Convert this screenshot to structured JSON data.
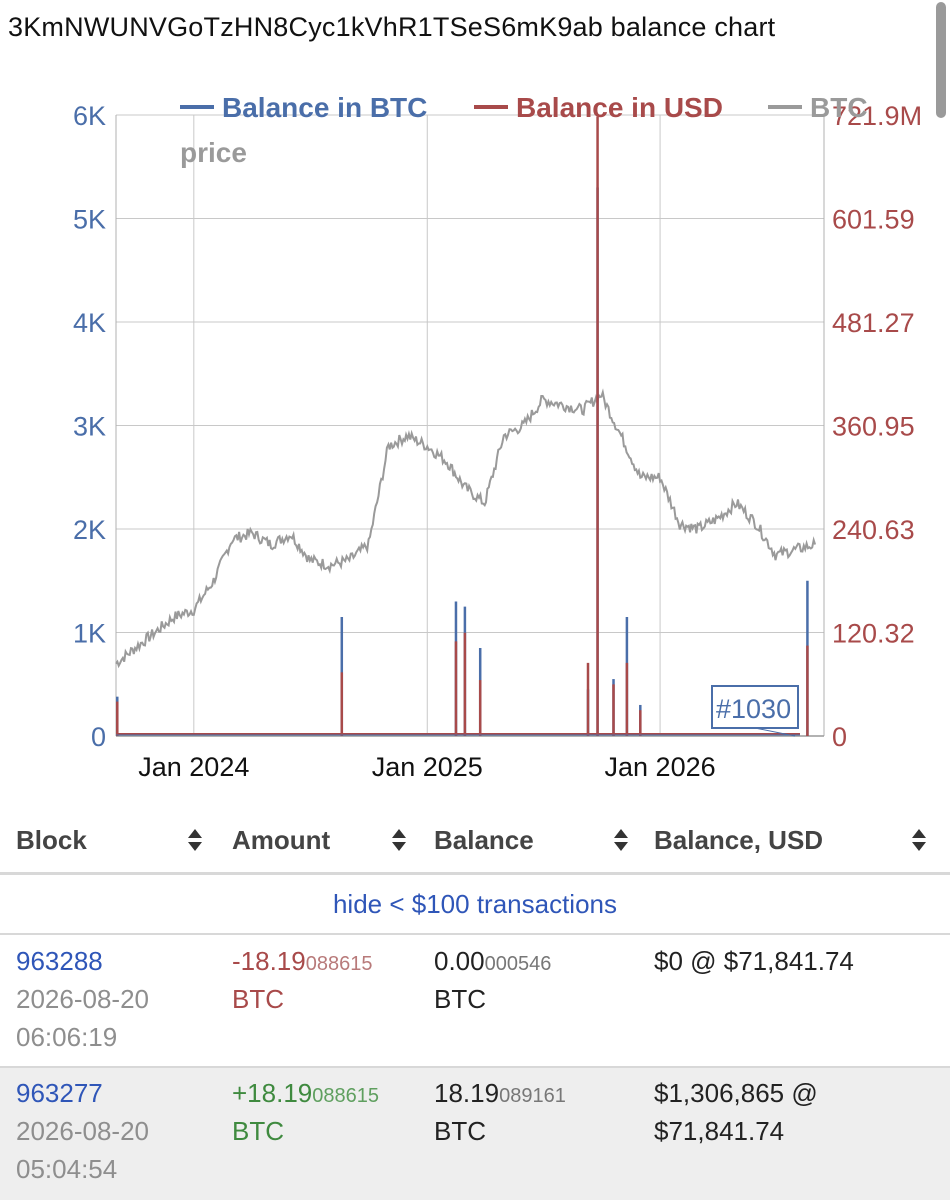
{
  "title": "3KmNWUNVGoTzHN8Cyc1kVhR1TSeS6mK9ab balance chart",
  "colors": {
    "btc": "#4a6ea9",
    "usd": "#a84a4a",
    "price": "#9a9a9a",
    "grid": "#c8c8c8"
  },
  "chart_data": {
    "type": "line",
    "title": "3KmNWUNVGoTzHN8Cyc1kVhR1TSeS6mK9ab balance chart",
    "legend": [
      "Balance in BTC",
      "Balance in USD",
      "BTC price"
    ],
    "legend_placement": "top",
    "grid": true,
    "x_range": [
      "2023-09-01",
      "2026-09-15"
    ],
    "x_ticks": [
      "Jan 2024",
      "Jan 2025",
      "Jan 2026"
    ],
    "y_left": {
      "ticks": [
        "0",
        "1K",
        "2K",
        "3K",
        "4K",
        "5K",
        "6K"
      ],
      "ylim": [
        0,
        6000
      ]
    },
    "y_right": {
      "ticks": [
        "0",
        "120.32",
        "240.63",
        "360.95",
        "481.27",
        "601.59",
        "721.9M"
      ],
      "ylim": [
        0,
        721.9
      ]
    },
    "series": [
      {
        "name": "BTC price",
        "axis": "left",
        "points": [
          [
            "2023-09-01",
            700
          ],
          [
            "2023-10-01",
            850
          ],
          [
            "2023-11-01",
            1000
          ],
          [
            "2023-12-01",
            1150
          ],
          [
            "2024-01-01",
            1220
          ],
          [
            "2024-02-01",
            1500
          ],
          [
            "2024-03-01",
            1900
          ],
          [
            "2024-04-01",
            1960
          ],
          [
            "2024-05-01",
            1850
          ],
          [
            "2024-06-01",
            1950
          ],
          [
            "2024-07-01",
            1700
          ],
          [
            "2024-08-01",
            1650
          ],
          [
            "2024-09-01",
            1700
          ],
          [
            "2024-10-01",
            1850
          ],
          [
            "2024-11-01",
            2800
          ],
          [
            "2024-12-01",
            2900
          ],
          [
            "2025-01-01",
            2800
          ],
          [
            "2025-02-01",
            2650
          ],
          [
            "2025-03-01",
            2400
          ],
          [
            "2025-04-01",
            2250
          ],
          [
            "2025-05-01",
            2900
          ],
          [
            "2025-06-01",
            3000
          ],
          [
            "2025-07-01",
            3250
          ],
          [
            "2025-08-01",
            3200
          ],
          [
            "2025-09-01",
            3150
          ],
          [
            "2025-10-01",
            3300
          ],
          [
            "2025-11-01",
            2900
          ],
          [
            "2025-12-01",
            2500
          ],
          [
            "2026-01-01",
            2500
          ],
          [
            "2026-02-01",
            2050
          ],
          [
            "2026-03-01",
            2000
          ],
          [
            "2026-04-01",
            2100
          ],
          [
            "2026-05-01",
            2250
          ],
          [
            "2026-06-01",
            2050
          ],
          [
            "2026-07-01",
            1750
          ],
          [
            "2026-08-01",
            1800
          ],
          [
            "2026-09-01",
            1850
          ]
        ]
      },
      {
        "name": "Balance in BTC",
        "axis": "left",
        "spikes": [
          [
            "2023-09-03",
            380
          ],
          [
            "2024-08-20",
            1150
          ],
          [
            "2025-02-15",
            1300
          ],
          [
            "2025-03-01",
            1250
          ],
          [
            "2025-03-25",
            850
          ],
          [
            "2025-09-10",
            450
          ],
          [
            "2025-09-25",
            5300
          ],
          [
            "2025-10-20",
            550
          ],
          [
            "2025-11-10",
            1150
          ],
          [
            "2025-12-01",
            300
          ],
          [
            "2026-08-20",
            1500
          ]
        ]
      },
      {
        "name": "Balance in USD",
        "axis": "right",
        "spikes": [
          [
            "2023-09-03",
            40
          ],
          [
            "2024-08-20",
            74
          ],
          [
            "2025-02-15",
            110
          ],
          [
            "2025-03-01",
            120
          ],
          [
            "2025-03-25",
            65
          ],
          [
            "2025-09-10",
            85
          ],
          [
            "2025-09-25",
            720
          ],
          [
            "2025-10-20",
            60
          ],
          [
            "2025-11-10",
            85
          ],
          [
            "2025-12-01",
            30
          ],
          [
            "2026-08-20",
            105
          ]
        ]
      }
    ],
    "annotations": [
      "#1030"
    ]
  },
  "table": {
    "headers": [
      "Block",
      "Amount",
      "Balance",
      "Balance, USD"
    ],
    "filter_link": "hide < $100 transactions",
    "rows": [
      {
        "block": "963288",
        "date": "2026-08-20",
        "time": "06:06:19",
        "amount_main": "-18.19",
        "amount_small": "088615",
        "amount_unit": "BTC",
        "balance_main": "0.00",
        "balance_small": "000546",
        "balance_unit": "BTC",
        "usd_line1": "$0 @ $71,841.74",
        "usd_line2": ""
      },
      {
        "block": "963277",
        "date": "2026-08-20",
        "time": "05:04:54",
        "amount_main": "+18.19",
        "amount_small": "088615",
        "amount_unit": "BTC",
        "balance_main": "18.19",
        "balance_small": "089161",
        "balance_unit": "BTC",
        "usd_line1": "$1,306,865 @",
        "usd_line2": "$71,841.74"
      }
    ]
  }
}
